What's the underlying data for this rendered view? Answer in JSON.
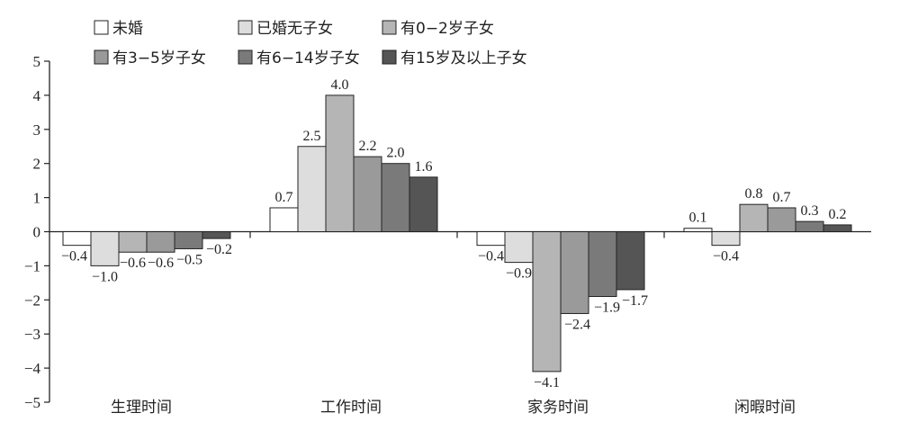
{
  "chart_data": {
    "type": "bar",
    "title": "",
    "xlabel": "",
    "ylabel": "",
    "ylim": [
      -5,
      5
    ],
    "yticks": [
      5,
      4,
      3,
      2,
      1,
      0,
      -1,
      -2,
      -3,
      -4,
      -5
    ],
    "ytick_labels": [
      "5",
      "4",
      "3",
      "2",
      "1",
      "0",
      "−1",
      "−2",
      "−3",
      "−4",
      "−5"
    ],
    "legend_position": "top-left",
    "categories": [
      "生理时间",
      "工作时间",
      "家务时间",
      "闲暇时间"
    ],
    "series": [
      {
        "name": "未婚",
        "color": "#ffffff",
        "values": [
          -0.4,
          0.7,
          -0.4,
          0.1
        ],
        "labels": [
          "−0.4",
          "0.7",
          "−0.4",
          "0.1"
        ]
      },
      {
        "name": "已婚无子女",
        "color": "#dddddd",
        "values": [
          -1.0,
          2.5,
          -0.9,
          -0.4
        ],
        "labels": [
          "−1.0",
          "2.5",
          "−0.9",
          "−0.4"
        ]
      },
      {
        "name": "有0−2岁子女",
        "color": "#b5b5b5",
        "values": [
          -0.6,
          4.0,
          -4.1,
          0.8
        ],
        "labels": [
          "−0.6",
          "4.0",
          "−4.1",
          "0.8"
        ]
      },
      {
        "name": "有3−5岁子女",
        "color": "#9a9a9a",
        "values": [
          -0.6,
          2.2,
          -2.4,
          0.7
        ],
        "labels": [
          "−0.6",
          "2.2",
          "−2.4",
          "0.7"
        ]
      },
      {
        "name": "有6−14岁子女",
        "color": "#7a7a7a",
        "values": [
          -0.5,
          2.0,
          -1.9,
          0.3
        ],
        "labels": [
          "−0.5",
          "2.0",
          "−1.9",
          "0.3"
        ]
      },
      {
        "name": "有15岁及以上子女",
        "color": "#555555",
        "values": [
          -0.2,
          1.6,
          -1.7,
          0.2
        ],
        "labels": [
          "−0.2",
          "1.6",
          "−1.7",
          "0.2"
        ]
      }
    ]
  }
}
